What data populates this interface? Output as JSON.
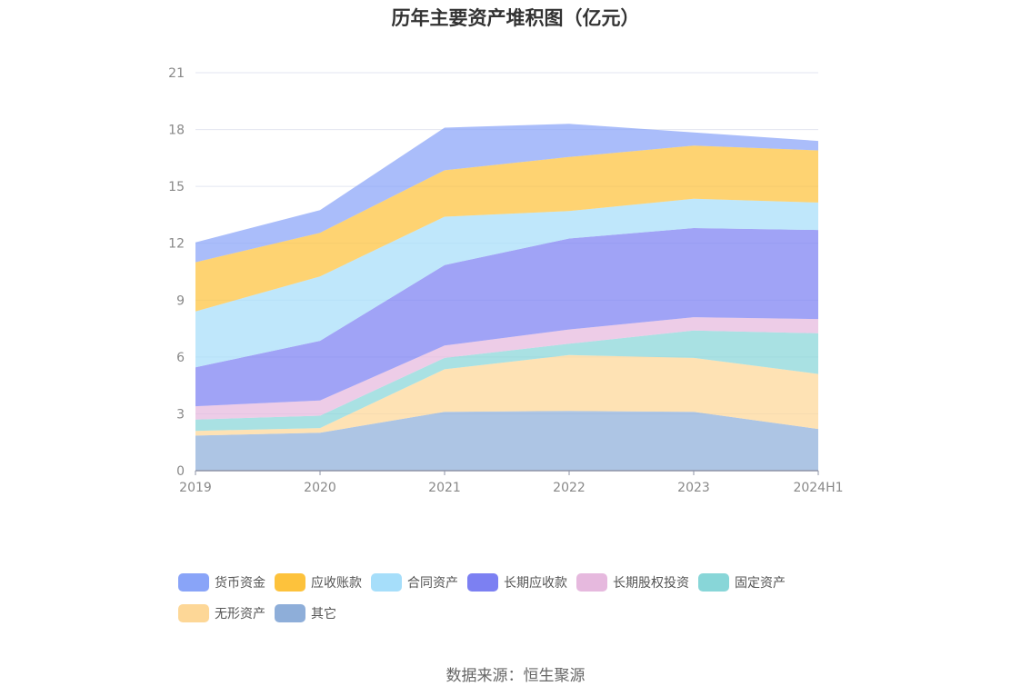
{
  "title": "历年主要资产堆积图（亿元）",
  "source": "数据来源：恒生聚源",
  "chart_data": {
    "type": "area",
    "stacked": true,
    "title": "历年主要资产堆积图（亿元）",
    "categories": [
      "2019",
      "2020",
      "2021",
      "2022",
      "2023",
      "2024H1"
    ],
    "ylim": [
      0,
      21
    ],
    "yticks": [
      "0",
      "3",
      "6",
      "9",
      "12",
      "15",
      "18",
      "21"
    ],
    "grid": true,
    "legend_position": "bottom",
    "series": [
      {
        "name": "其它",
        "color": "#8eaed9",
        "values": [
          1.85,
          2.0,
          3.1,
          3.15,
          3.1,
          2.2
        ]
      },
      {
        "name": "无形资产",
        "color": "#fdd797",
        "values": [
          0.25,
          0.25,
          2.25,
          2.95,
          2.85,
          2.9
        ]
      },
      {
        "name": "固定资产",
        "color": "#88d6d8",
        "values": [
          0.6,
          0.65,
          0.6,
          0.6,
          1.45,
          2.15
        ]
      },
      {
        "name": "长期股权投资",
        "color": "#e6b9de",
        "values": [
          0.7,
          0.8,
          0.65,
          0.75,
          0.7,
          0.75
        ]
      },
      {
        "name": "长期应收款",
        "color": "#7c80f2",
        "values": [
          2.05,
          3.15,
          4.25,
          4.8,
          4.7,
          4.7
        ]
      },
      {
        "name": "合同资产",
        "color": "#a6defa",
        "values": [
          2.95,
          3.4,
          2.55,
          1.45,
          1.55,
          1.45
        ]
      },
      {
        "name": "应收账款",
        "color": "#fdc23c",
        "values": [
          2.6,
          2.3,
          2.45,
          2.85,
          2.8,
          2.75
        ]
      },
      {
        "name": "货币资金",
        "color": "#89a4f8",
        "values": [
          1.05,
          1.2,
          2.25,
          1.75,
          0.7,
          0.5
        ]
      }
    ],
    "legend_order": [
      "货币资金",
      "应收账款",
      "合同资产",
      "长期应收款",
      "长期股权投资",
      "固定资产",
      "无形资产",
      "其它"
    ]
  }
}
